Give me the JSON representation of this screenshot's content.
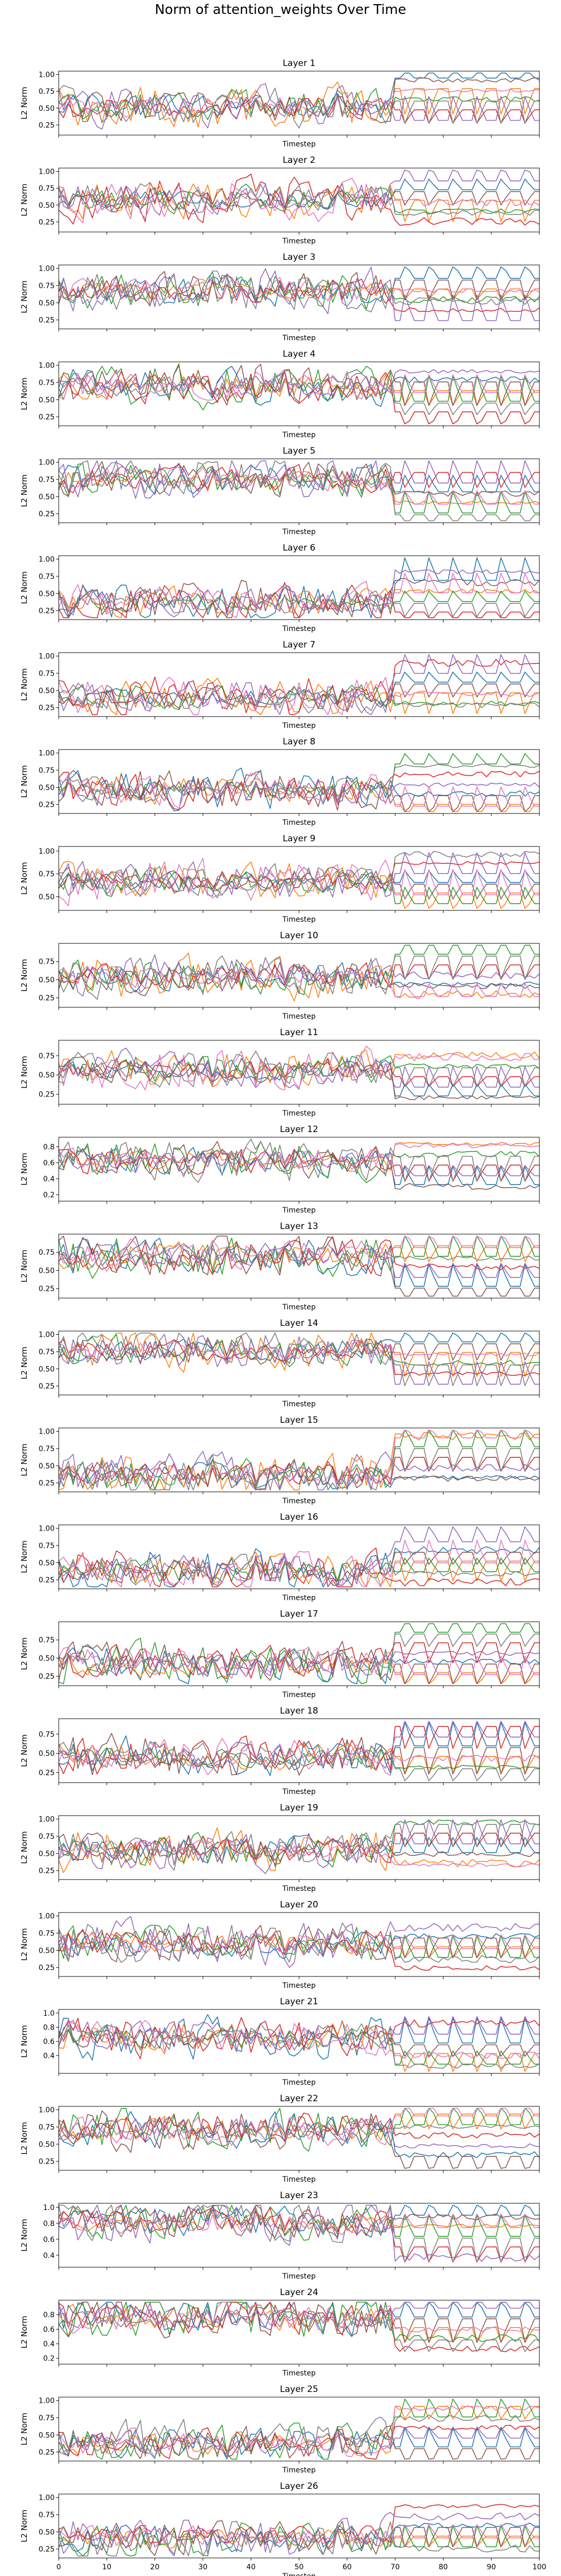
{
  "figure": {
    "title": "Norm of attention_weights Over Time",
    "xlabel": "Timestep",
    "ylabel": "L2 Norm"
  },
  "colors": [
    "#1f77b4",
    "#ff7f0e",
    "#2ca02c",
    "#d62728",
    "#9467bd",
    "#8c564b",
    "#e377c2",
    "#7f7f7f"
  ],
  "chart_data": [
    {
      "type": "line",
      "title": "Layer 1",
      "xlabel": "Timestep",
      "ylabel": "L2 Norm",
      "xlim": [
        0,
        100
      ],
      "ylim": [
        0.1,
        1.05
      ],
      "yticks": [
        0.25,
        0.5,
        0.75,
        1.0
      ],
      "ytick_labels": [
        "0.25",
        "0.50",
        "0.75",
        "1.00"
      ],
      "seed": 11
    },
    {
      "type": "line",
      "title": "Layer 2",
      "xlabel": "Timestep",
      "ylabel": "L2 Norm",
      "xlim": [
        0,
        100
      ],
      "ylim": [
        0.1,
        1.05
      ],
      "yticks": [
        0.25,
        0.5,
        0.75,
        1.0
      ],
      "ytick_labels": [
        "0.25",
        "0.50",
        "0.75",
        "1.00"
      ],
      "seed": 23
    },
    {
      "type": "line",
      "title": "Layer 3",
      "xlabel": "Timestep",
      "ylabel": "L2 Norm",
      "xlim": [
        0,
        100
      ],
      "ylim": [
        0.12,
        1.05
      ],
      "yticks": [
        0.25,
        0.5,
        0.75,
        1.0
      ],
      "ytick_labels": [
        "0.25",
        "0.50",
        "0.75",
        "1.00"
      ],
      "seed": 37
    },
    {
      "type": "line",
      "title": "Layer 4",
      "xlabel": "Timestep",
      "ylabel": "L2 Norm",
      "xlim": [
        0,
        100
      ],
      "ylim": [
        0.12,
        1.05
      ],
      "yticks": [
        0.25,
        0.5,
        0.75,
        1.0
      ],
      "ytick_labels": [
        "0.25",
        "0.50",
        "0.75",
        "1.00"
      ],
      "seed": 41
    },
    {
      "type": "line",
      "title": "Layer 5",
      "xlabel": "Timestep",
      "ylabel": "L2 Norm",
      "xlim": [
        0,
        100
      ],
      "ylim": [
        0.12,
        1.05
      ],
      "yticks": [
        0.25,
        0.5,
        0.75,
        1.0
      ],
      "ytick_labels": [
        "0.25",
        "0.50",
        "0.75",
        "1.00"
      ],
      "seed": 53
    },
    {
      "type": "line",
      "title": "Layer 6",
      "xlabel": "Timestep",
      "ylabel": "L2 Norm",
      "xlim": [
        0,
        100
      ],
      "ylim": [
        0.12,
        1.05
      ],
      "yticks": [
        0.25,
        0.5,
        0.75,
        1.0
      ],
      "ytick_labels": [
        "0.25",
        "0.50",
        "0.75",
        "1.00"
      ],
      "seed": 67
    },
    {
      "type": "line",
      "title": "Layer 7",
      "xlabel": "Timestep",
      "ylabel": "L2 Norm",
      "xlim": [
        0,
        100
      ],
      "ylim": [
        0.12,
        1.05
      ],
      "yticks": [
        0.25,
        0.5,
        0.75,
        1.0
      ],
      "ytick_labels": [
        "0.25",
        "0.50",
        "0.75",
        "1.00"
      ],
      "seed": 71
    },
    {
      "type": "line",
      "title": "Layer 8",
      "xlabel": "Timestep",
      "ylabel": "L2 Norm",
      "xlim": [
        0,
        100
      ],
      "ylim": [
        0.12,
        1.05
      ],
      "yticks": [
        0.25,
        0.5,
        0.75,
        1.0
      ],
      "ytick_labels": [
        "0.25",
        "0.50",
        "0.75",
        "1.00"
      ],
      "seed": 83
    },
    {
      "type": "line",
      "title": "Layer 9",
      "xlabel": "Timestep",
      "ylabel": "L2 Norm",
      "xlim": [
        0,
        100
      ],
      "ylim": [
        0.35,
        1.05
      ],
      "yticks": [
        0.5,
        0.75,
        1.0
      ],
      "ytick_labels": [
        "0.50",
        "0.75",
        "1.00"
      ],
      "seed": 97
    },
    {
      "type": "line",
      "title": "Layer 10",
      "xlabel": "Timestep",
      "ylabel": "L2 Norm",
      "xlim": [
        0,
        100
      ],
      "ylim": [
        0.12,
        1.0
      ],
      "yticks": [
        0.25,
        0.5,
        0.75
      ],
      "ytick_labels": [
        "0.25",
        "0.50",
        "0.75"
      ],
      "seed": 101
    },
    {
      "type": "line",
      "title": "Layer 11",
      "xlabel": "Timestep",
      "ylabel": "L2 Norm",
      "xlim": [
        0,
        100
      ],
      "ylim": [
        0.12,
        0.95
      ],
      "yticks": [
        0.25,
        0.5,
        0.75
      ],
      "ytick_labels": [
        "0.25",
        "0.50",
        "0.75"
      ],
      "seed": 113
    },
    {
      "type": "line",
      "title": "Layer 12",
      "xlabel": "Timestep",
      "ylabel": "L2 Norm",
      "xlim": [
        0,
        100
      ],
      "ylim": [
        0.12,
        0.92
      ],
      "yticks": [
        0.2,
        0.4,
        0.6,
        0.8
      ],
      "ytick_labels": [
        "0.2",
        "0.4",
        "0.6",
        "0.8"
      ],
      "seed": 127
    },
    {
      "type": "line",
      "title": "Layer 13",
      "xlabel": "Timestep",
      "ylabel": "L2 Norm",
      "xlim": [
        0,
        100
      ],
      "ylim": [
        0.12,
        1.0
      ],
      "yticks": [
        0.25,
        0.5,
        0.75
      ],
      "ytick_labels": [
        "0.25",
        "0.50",
        "0.75"
      ],
      "seed": 131
    },
    {
      "type": "line",
      "title": "Layer 14",
      "xlabel": "Timestep",
      "ylabel": "L2 Norm",
      "xlim": [
        0,
        100
      ],
      "ylim": [
        0.12,
        1.05
      ],
      "yticks": [
        0.25,
        0.5,
        0.75,
        1.0
      ],
      "ytick_labels": [
        "0.25",
        "0.50",
        "0.75",
        "1.00"
      ],
      "seed": 139
    },
    {
      "type": "line",
      "title": "Layer 15",
      "xlabel": "Timestep",
      "ylabel": "L2 Norm",
      "xlim": [
        0,
        100
      ],
      "ylim": [
        0.12,
        1.05
      ],
      "yticks": [
        0.25,
        0.5,
        0.75,
        1.0
      ],
      "ytick_labels": [
        "0.25",
        "0.50",
        "0.75",
        "1.00"
      ],
      "seed": 149
    },
    {
      "type": "line",
      "title": "Layer 16",
      "xlabel": "Timestep",
      "ylabel": "L2 Norm",
      "xlim": [
        0,
        100
      ],
      "ylim": [
        0.12,
        1.05
      ],
      "yticks": [
        0.25,
        0.5,
        0.75,
        1.0
      ],
      "ytick_labels": [
        "0.25",
        "0.50",
        "0.75",
        "1.00"
      ],
      "seed": 151
    },
    {
      "type": "line",
      "title": "Layer 17",
      "xlabel": "Timestep",
      "ylabel": "L2 Norm",
      "xlim": [
        0,
        100
      ],
      "ylim": [
        0.12,
        1.0
      ],
      "yticks": [
        0.25,
        0.5,
        0.75
      ],
      "ytick_labels": [
        "0.25",
        "0.50",
        "0.75"
      ],
      "seed": 163
    },
    {
      "type": "line",
      "title": "Layer 18",
      "xlabel": "Timestep",
      "ylabel": "L2 Norm",
      "xlim": [
        0,
        100
      ],
      "ylim": [
        0.12,
        0.95
      ],
      "yticks": [
        0.25,
        0.5,
        0.75
      ],
      "ytick_labels": [
        "0.25",
        "0.50",
        "0.75"
      ],
      "seed": 173
    },
    {
      "type": "line",
      "title": "Layer 19",
      "xlabel": "Timestep",
      "ylabel": "L2 Norm",
      "xlim": [
        0,
        100
      ],
      "ylim": [
        0.12,
        1.05
      ],
      "yticks": [
        0.25,
        0.5,
        0.75,
        1.0
      ],
      "ytick_labels": [
        "0.25",
        "0.50",
        "0.75",
        "1.00"
      ],
      "seed": 181
    },
    {
      "type": "line",
      "title": "Layer 20",
      "xlabel": "Timestep",
      "ylabel": "L2 Norm",
      "xlim": [
        0,
        100
      ],
      "ylim": [
        0.12,
        1.05
      ],
      "yticks": [
        0.25,
        0.5,
        0.75,
        1.0
      ],
      "ytick_labels": [
        "0.25",
        "0.50",
        "0.75",
        "1.00"
      ],
      "seed": 191
    },
    {
      "type": "line",
      "title": "Layer 21",
      "xlabel": "Timestep",
      "ylabel": "L2 Norm",
      "xlim": [
        0,
        100
      ],
      "ylim": [
        0.15,
        1.05
      ],
      "yticks": [
        0.4,
        0.6,
        0.8,
        1.0
      ],
      "ytick_labels": [
        "0.4",
        "0.6",
        "0.8",
        "1.0"
      ],
      "seed": 199
    },
    {
      "type": "line",
      "title": "Layer 22",
      "xlabel": "Timestep",
      "ylabel": "L2 Norm",
      "xlim": [
        0,
        100
      ],
      "ylim": [
        0.12,
        1.05
      ],
      "yticks": [
        0.25,
        0.5,
        0.75,
        1.0
      ],
      "ytick_labels": [
        "0.25",
        "0.50",
        "0.75",
        "1.00"
      ],
      "seed": 211
    },
    {
      "type": "line",
      "title": "Layer 23",
      "xlabel": "Timestep",
      "ylabel": "L2 Norm",
      "xlim": [
        0,
        100
      ],
      "ylim": [
        0.25,
        1.05
      ],
      "yticks": [
        0.4,
        0.6,
        0.8,
        1.0
      ],
      "ytick_labels": [
        "0.4",
        "0.6",
        "0.8",
        "1.0"
      ],
      "seed": 223
    },
    {
      "type": "line",
      "title": "Layer 24",
      "xlabel": "Timestep",
      "ylabel": "L2 Norm",
      "xlim": [
        0,
        100
      ],
      "ylim": [
        0.12,
        1.0
      ],
      "yticks": [
        0.2,
        0.4,
        0.6,
        0.8
      ],
      "ytick_labels": [
        "0.2",
        "0.4",
        "0.6",
        "0.8"
      ],
      "seed": 227
    },
    {
      "type": "line",
      "title": "Layer 25",
      "xlabel": "Timestep",
      "ylabel": "L2 Norm",
      "xlim": [
        0,
        100
      ],
      "ylim": [
        0.12,
        1.05
      ],
      "yticks": [
        0.25,
        0.5,
        0.75,
        1.0
      ],
      "ytick_labels": [
        "0.25",
        "0.50",
        "0.75",
        "1.00"
      ],
      "seed": 233
    },
    {
      "type": "line",
      "title": "Layer 26",
      "xlabel": "Timestep",
      "ylabel": "L2 Norm",
      "xlim": [
        0,
        100
      ],
      "ylim": [
        0.12,
        1.05
      ],
      "yticks": [
        0.25,
        0.5,
        0.75,
        1.0
      ],
      "ytick_labels": [
        "0.25",
        "0.50",
        "0.75",
        "1.00"
      ],
      "seed": 239
    }
  ],
  "x_ticks": [
    0,
    10,
    20,
    30,
    40,
    50,
    60,
    70,
    80,
    90,
    100
  ]
}
